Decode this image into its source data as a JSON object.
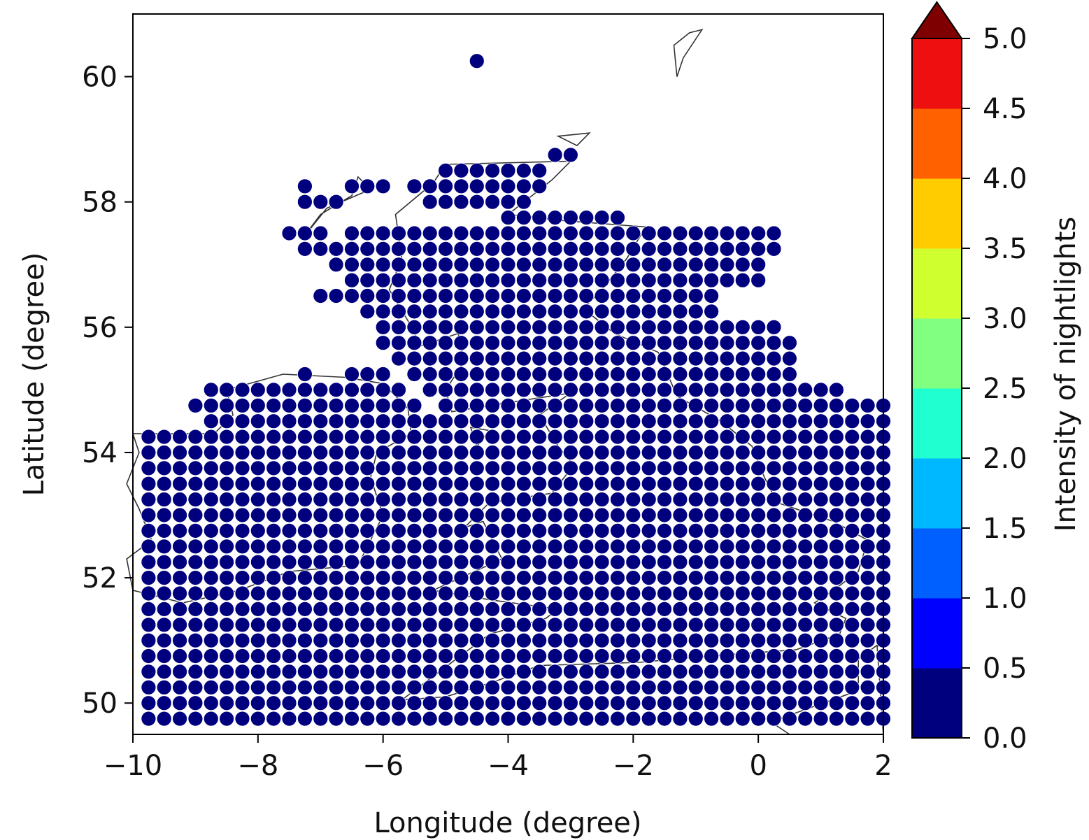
{
  "chart_data": {
    "type": "scatter",
    "title": "",
    "xlabel": "Longitude (degree)",
    "ylabel": "Latitude (degree)",
    "xlim": [
      -10,
      2
    ],
    "ylim": [
      49.5,
      61
    ],
    "xticks": [
      -10,
      -8,
      -6,
      -4,
      -2,
      0,
      2
    ],
    "yticks": [
      50,
      52,
      54,
      56,
      58,
      60
    ],
    "xtick_labels": [
      "−10",
      "−8",
      "−6",
      "−4",
      "−2",
      "0",
      "2"
    ],
    "ytick_labels": [
      "50",
      "52",
      "54",
      "56",
      "58",
      "60"
    ],
    "grid": false,
    "marker": "circle",
    "colorbar": {
      "label": "Intensity of nightlights",
      "min": 0.0,
      "max": 5.0,
      "extend": "max",
      "ticks": [
        0.0,
        0.5,
        1.0,
        1.5,
        2.0,
        2.5,
        3.0,
        3.5,
        4.0,
        4.5,
        5.0
      ],
      "tick_labels": [
        "0.0",
        "0.5",
        "1.0",
        "1.5",
        "2.0",
        "2.5",
        "3.0",
        "3.5",
        "4.0",
        "4.5",
        "5.0"
      ],
      "colors": [
        "#00007f",
        "#0000ff",
        "#0060ff",
        "#00b8ff",
        "#20ffd0",
        "#80ff80",
        "#d0ff30",
        "#ffcc00",
        "#ff6000",
        "#ee1010",
        "#7f0000"
      ]
    },
    "points_encoding": "grid",
    "grid_spacing": 0.25,
    "lon_start": -9.75,
    "lat_rows": [
      {
        "lat": 60.25,
        "cells": ".....................0"
      },
      {
        "lat": 58.75,
        "cells": "..........................00"
      },
      {
        "lat": 58.5,
        "cells": "...................0000000"
      },
      {
        "lat": 58.25,
        "cells": "..........0..000.000000000"
      },
      {
        "lat": 58.0,
        "cells": "..........000.....0000000"
      },
      {
        "lat": 57.75,
        "cells": ".......................00000000"
      },
      {
        "lat": 57.5,
        "cells": ".........000.0000000000000000000000000000"
      },
      {
        "lat": 57.25,
        "cells": "..........0000000000000000000000000000000"
      },
      {
        "lat": 57.0,
        "cells": "............0000000000000000000000000000"
      },
      {
        "lat": 56.75,
        "cells": ".............000000000000000000000000000"
      },
      {
        "lat": 56.5,
        "cells": "...........00000000000000000000000000"
      },
      {
        "lat": 56.25,
        "cells": "..............00000000000000000000000"
      },
      {
        "lat": 56.0,
        "cells": "...............00000000000000000000000000"
      },
      {
        "lat": 55.75,
        "cells": "...............000000000000000000000000000"
      },
      {
        "lat": 55.5,
        "cells": "................00000000000000000000000000"
      },
      {
        "lat": 55.25,
        "cells": "..........0..000.0000000000000000000000000"
      },
      {
        "lat": 55.0,
        "cells": "....0000000000000.000000000000000000000000000"
      },
      {
        "lat": 54.75,
        "cells": "...000000000000000.00000000000000000000000000000"
      },
      {
        "lat": 54.5,
        "cells": "....00000000000000000000000000000000000000000000"
      },
      {
        "lat": 54.25,
        "cells": "0000000000000000000000000000000000000000000000000"
      },
      {
        "lat": 54.0,
        "cells": "00000000000000000000000000000000000000000000000000"
      },
      {
        "lat": 53.75,
        "cells": "00000000000000000000000000000000000000000000000000"
      },
      {
        "lat": 53.5,
        "cells": "00000000000000000000000000000000000000000000000000000"
      },
      {
        "lat": 53.25,
        "cells": "00000000000000000000000000000000000000000000000000000"
      },
      {
        "lat": 53.0,
        "cells": "0000000000000000000000000000000000000000000000000000000"
      },
      {
        "lat": 52.75,
        "cells": "0000000000000000000000000000000000000000000000000000000"
      },
      {
        "lat": 52.5,
        "cells": "00000000000000000000000000000000000000000000000000000000"
      },
      {
        "lat": 52.25,
        "cells": "00000000000000000000000000000000000000000000000000000000"
      },
      {
        "lat": 52.0,
        "cells": "00000000000000000000000000000000000000000000000000000000"
      },
      {
        "lat": 51.75,
        "cells": "00000000000000000000000000000000000000000000000000000000"
      },
      {
        "lat": 51.5,
        "cells": "00000000000000000000000000000000000000000000000000000000"
      },
      {
        "lat": 51.25,
        "cells": "00000000000000000000000000000000000000000000000000000000"
      },
      {
        "lat": 51.0,
        "cells": "00000000000000000000000000000000000000000000000000000000"
      },
      {
        "lat": 50.75,
        "cells": "00000000000000000000000000000000000000000000000000000000"
      },
      {
        "lat": 50.5,
        "cells": "00000000000000000000000000000000000000000000000000000000"
      },
      {
        "lat": 50.25,
        "cells": "00000000000000000000000000000000000000000000000000000000"
      },
      {
        "lat": 50.0,
        "cells": "00000000000000000000000000000000000000000000000000000000"
      },
      {
        "lat": 49.75,
        "cells": "00000000000000000000000000000000000000000000000000000000"
      }
    ]
  }
}
